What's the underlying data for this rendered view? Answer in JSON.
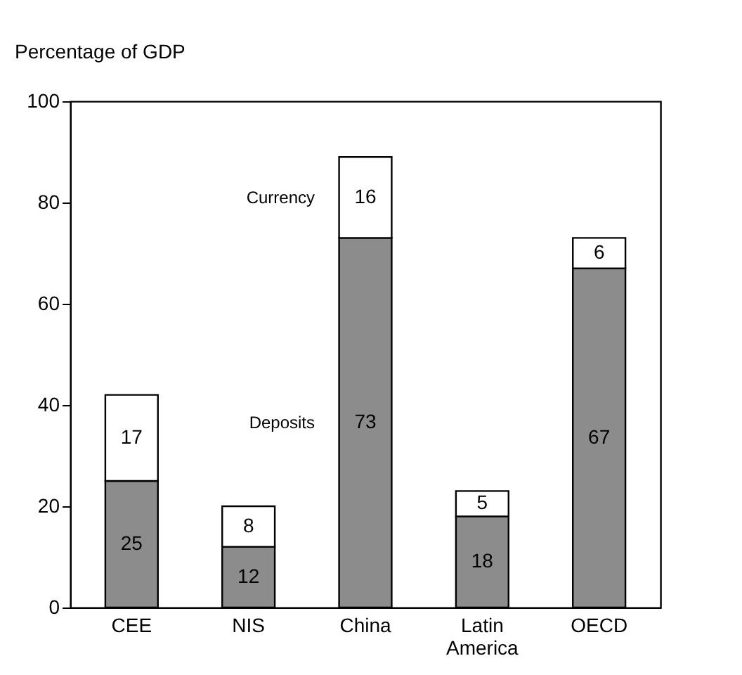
{
  "chart_data": {
    "type": "bar",
    "stacked": true,
    "ylabel": "Percentage of GDP",
    "categories": [
      "CEE",
      "NIS",
      "China",
      "Latin America",
      "OECD"
    ],
    "series": [
      {
        "name": "Deposits",
        "color": "#8c8c8c",
        "values": [
          25,
          12,
          73,
          18,
          67
        ]
      },
      {
        "name": "Currency",
        "color": "#ffffff",
        "values": [
          17,
          8,
          16,
          5,
          6
        ]
      }
    ],
    "ylim": [
      0,
      100
    ],
    "yticks": [
      0,
      20,
      40,
      60,
      80,
      100
    ],
    "grid": false,
    "legend": false,
    "data_labels": true
  }
}
